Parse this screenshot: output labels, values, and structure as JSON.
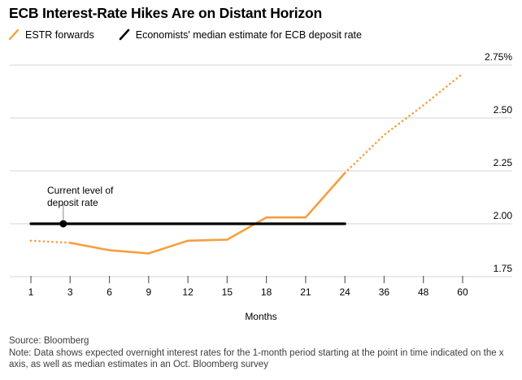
{
  "header": {
    "title": "ECB Interest-Rate Hikes Are on Distant Horizon"
  },
  "legend": [
    {
      "label": "ESTR forwards",
      "color": "#F79E3D",
      "icon": "slash-icon"
    },
    {
      "label": "Economists' median estimate for ECB deposit rate",
      "color": "#000000",
      "icon": "slash-icon"
    }
  ],
  "colors": {
    "accent_orange": "#F79E3D",
    "black": "#000000",
    "gridline": "#e4e4e4",
    "tick": "#606060",
    "connector": "#888888",
    "footer_text": "#3d3d3d"
  },
  "chart_data": {
    "type": "line",
    "title": "ECB Interest-Rate Hikes Are on Distant Horizon",
    "xlabel": "Months",
    "ylabel": "",
    "ylim": [
      1.75,
      2.75
    ],
    "grid": "horizontal",
    "legend_position": "top",
    "categories": [
      1,
      3,
      6,
      9,
      12,
      15,
      18,
      21,
      24,
      36,
      48,
      60
    ],
    "y_ticks": [
      {
        "value": 2.75,
        "label": "2.75%"
      },
      {
        "value": 2.5,
        "label": "2.50"
      },
      {
        "value": 2.25,
        "label": "2.25"
      },
      {
        "value": 2.0,
        "label": "2.00"
      },
      {
        "value": 1.75,
        "label": "1.75"
      }
    ],
    "series": [
      {
        "name": "ESTR forwards",
        "color": "#F79E3D",
        "segments": [
          {
            "style": "dotted",
            "points": [
              [
                1,
                1.92
              ],
              [
                3,
                1.91
              ]
            ]
          },
          {
            "style": "solid",
            "points": [
              [
                3,
                1.91
              ],
              [
                6,
                1.875
              ],
              [
                9,
                1.86
              ],
              [
                12,
                1.92
              ],
              [
                15,
                1.925
              ],
              [
                18,
                2.03
              ],
              [
                21,
                2.03
              ],
              [
                24,
                2.24
              ]
            ]
          },
          {
            "style": "dotted",
            "points": [
              [
                24,
                2.24
              ],
              [
                36,
                2.42
              ],
              [
                48,
                2.56
              ],
              [
                60,
                2.71
              ]
            ]
          }
        ]
      },
      {
        "name": "Economists' median estimate for ECB deposit rate",
        "color": "#000000",
        "segments": [
          {
            "style": "solid",
            "points": [
              [
                1,
                2.0
              ],
              [
                24,
                2.0
              ]
            ]
          }
        ]
      }
    ],
    "annotation": {
      "text": "Current level of deposit rate",
      "marker_month": 2.65,
      "marker_value": 2.0
    }
  },
  "footer": {
    "source": "Source: Bloomberg",
    "note": "Note: Data shows expected overnight interest rates for the 1-month period starting at the point in time indicated on the x axis, as well as median estimates in an Oct. Bloomberg survey"
  }
}
